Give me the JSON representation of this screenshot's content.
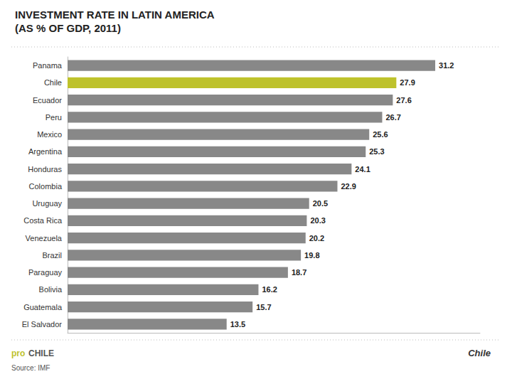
{
  "chart_data": {
    "type": "bar",
    "orientation": "horizontal",
    "title": "INVESTMENT RATE IN LATIN AMERICA",
    "subtitle": "(AS % OF GDP, 2011)",
    "categories": [
      "Panama",
      "Chile",
      "Ecuador",
      "Peru",
      "Mexico",
      "Argentina",
      "Honduras",
      "Colombia",
      "Uruguay",
      "Costa Rica",
      "Venezuela",
      "Brazil",
      "Paraguay",
      "Bolivia",
      "Guatemala",
      "El Salvador"
    ],
    "values": [
      31.2,
      27.9,
      27.6,
      26.7,
      25.6,
      25.3,
      24.1,
      22.9,
      20.5,
      20.3,
      20.2,
      19.8,
      18.7,
      16.2,
      15.7,
      13.5
    ],
    "colors": [
      "#888888",
      "#bec22b",
      "#888888",
      "#888888",
      "#888888",
      "#888888",
      "#888888",
      "#888888",
      "#888888",
      "#888888",
      "#888888",
      "#888888",
      "#888888",
      "#888888",
      "#888888",
      "#888888"
    ],
    "xlim": [
      0,
      35
    ],
    "data_labels": true,
    "tick_labels": "y",
    "grid": false,
    "annotations": [
      {
        "text": "pro",
        "color": "#bec22b"
      },
      {
        "text": "CHILE",
        "color": "#555555"
      },
      {
        "text": "Source: IMF",
        "color": "#555555"
      },
      {
        "text": "Chile",
        "color": "#333333"
      }
    ]
  }
}
